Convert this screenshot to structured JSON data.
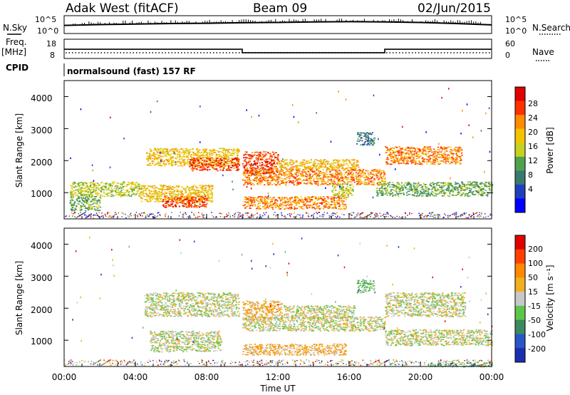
{
  "header": {
    "site": "Adak West (fitACF)",
    "beam": "Beam 09",
    "date": "02/Jun/2015"
  },
  "left_labels": {
    "nsky": "N.Sky",
    "freq_line1": "Freq.",
    "freq_line2": "[MHz]",
    "cpid": "CPID"
  },
  "right_labels": {
    "nsearch": "N.Search",
    "nave": "Nave"
  },
  "cpid_text": "normalsound (fast) 157 RF",
  "noise_panel": {
    "left_ticks": [
      "10^5",
      "10^0"
    ],
    "right_ticks": [
      "10^5",
      "10^0"
    ]
  },
  "freq_panel": {
    "left_ticks": [
      "18",
      "8"
    ],
    "right_ticks": [
      "60",
      "0"
    ]
  },
  "power_panel": {
    "ylabel": "Slant Range [km]",
    "yticks": [
      "4000",
      "3000",
      "2000",
      "1000"
    ],
    "colorbar_label": "Power [dB]",
    "colorbar_ticks": [
      "28",
      "24",
      "20",
      "16",
      "12",
      "8",
      "4"
    ],
    "colors": [
      "#0000ff",
      "#1f3fbf",
      "#3a7a6e",
      "#4fa34f",
      "#c8d020",
      "#f5c400",
      "#ff8c00",
      "#ff3000",
      "#e00000"
    ]
  },
  "velocity_panel": {
    "ylabel": "Slant Range [km]",
    "yticks": [
      "4000",
      "3000",
      "2000",
      "1000"
    ],
    "colorbar_label": "Velocity [m s⁻¹]",
    "colorbar_ticks": [
      "200",
      "100",
      "50",
      "15",
      "-15",
      "-50",
      "-100",
      "-200"
    ],
    "colors": [
      "#1a2fb0",
      "#2a55c8",
      "#3b8a5e",
      "#5cc64a",
      "#c8c8c8",
      "#f0b020",
      "#ff8a00",
      "#ff4000",
      "#e00000"
    ]
  },
  "time_axis": {
    "label": "Time UT",
    "ticks": [
      "00:00",
      "04:00",
      "08:00",
      "12:00",
      "16:00",
      "20:00",
      "00:00"
    ]
  },
  "chart_data": [
    {
      "type": "line",
      "name": "noise",
      "x": [
        0,
        2,
        4,
        6,
        8,
        10,
        12,
        14,
        16,
        18,
        20,
        22,
        24
      ],
      "y": [
        2.2,
        2.5,
        2.7,
        2.9,
        3.0,
        3.2,
        3.3,
        3.5,
        3.6,
        3.5,
        3.3,
        2.9,
        2.4
      ],
      "x_unit": "hours UT"
    },
    {
      "type": "line",
      "name": "frequency",
      "x": [
        0,
        10.0,
        10.0,
        18.0,
        18.0,
        24
      ],
      "y": [
        12.5,
        12.5,
        10.3,
        10.3,
        12.5,
        12.5
      ],
      "ylim": [
        8,
        18
      ]
    },
    {
      "type": "heatmap",
      "name": "power",
      "xlim": [
        0,
        24
      ],
      "ylim": [
        180,
        4500
      ],
      "regions": [
        {
          "x": [
            0.3,
            4.3
          ],
          "y": [
            900,
            1350
          ],
          "level": 4
        },
        {
          "x": [
            0.3,
            2.0
          ],
          "y": [
            450,
            900
          ],
          "level": 3
        },
        {
          "x": [
            4.2,
            8.3
          ],
          "y": [
            700,
            1250
          ],
          "level": 5
        },
        {
          "x": [
            5.5,
            8.0
          ],
          "y": [
            550,
            900
          ],
          "level": 7
        },
        {
          "x": [
            4.6,
            9.8
          ],
          "y": [
            1850,
            2400
          ],
          "level": 5
        },
        {
          "x": [
            7.0,
            9.8
          ],
          "y": [
            1700,
            2100
          ],
          "level": 7
        },
        {
          "x": [
            10.0,
            12.0
          ],
          "y": [
            1600,
            2300
          ],
          "level": 7
        },
        {
          "x": [
            10.0,
            18.0
          ],
          "y": [
            1250,
            1750
          ],
          "level": 6
        },
        {
          "x": [
            12.0,
            16.5
          ],
          "y": [
            1750,
            2050
          ],
          "level": 5
        },
        {
          "x": [
            10.0,
            15.8
          ],
          "y": [
            500,
            900
          ],
          "level": 6
        },
        {
          "x": [
            15.0,
            16.2
          ],
          "y": [
            900,
            1300
          ],
          "level": 4
        },
        {
          "x": [
            18.0,
            22.3
          ],
          "y": [
            1900,
            2450
          ],
          "level": 6
        },
        {
          "x": [
            17.5,
            24.0
          ],
          "y": [
            900,
            1350
          ],
          "level": 3
        },
        {
          "x": [
            16.4,
            17.4
          ],
          "y": [
            2500,
            2900
          ],
          "level": 2
        }
      ]
    },
    {
      "type": "heatmap",
      "name": "velocity",
      "xlim": [
        0,
        24
      ],
      "ylim": [
        180,
        4500
      ],
      "regions": [
        {
          "x": [
            4.8,
            8.8
          ],
          "y": [
            650,
            1300
          ],
          "level": 4
        },
        {
          "x": [
            4.5,
            9.8
          ],
          "y": [
            1750,
            2500
          ],
          "level": 4
        },
        {
          "x": [
            10.0,
            12.2
          ],
          "y": [
            1650,
            2250
          ],
          "level": 5
        },
        {
          "x": [
            10.0,
            18.0
          ],
          "y": [
            1300,
            1750
          ],
          "level": 4
        },
        {
          "x": [
            12.3,
            16.3
          ],
          "y": [
            1700,
            2100
          ],
          "level": 4
        },
        {
          "x": [
            10.0,
            15.8
          ],
          "y": [
            550,
            900
          ],
          "level": 5
        },
        {
          "x": [
            18.0,
            22.5
          ],
          "y": [
            1750,
            2500
          ],
          "level": 4
        },
        {
          "x": [
            18.0,
            24.0
          ],
          "y": [
            850,
            1350
          ],
          "level": 4
        },
        {
          "x": [
            16.4,
            17.4
          ],
          "y": [
            2500,
            2900
          ],
          "level": 3
        },
        {
          "x": [
            20.5,
            24.0
          ],
          "y": [
            180,
            320
          ],
          "level": 3
        }
      ]
    }
  ]
}
